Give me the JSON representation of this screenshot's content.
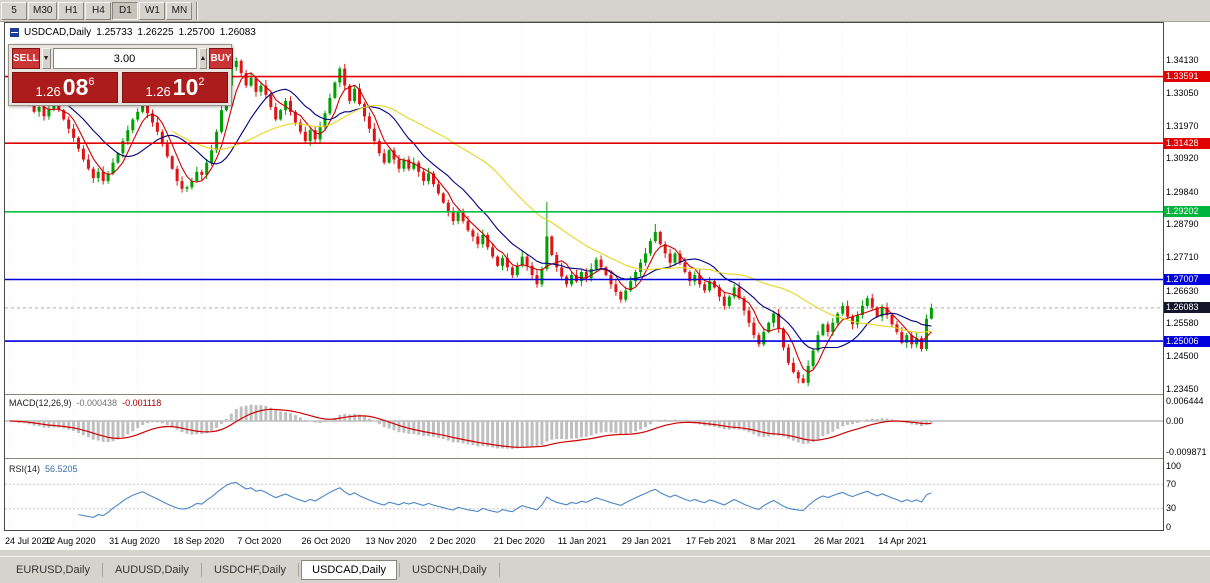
{
  "toolbar": {
    "timeframes": [
      "5",
      "M30",
      "H1",
      "H4",
      "D1",
      "W1",
      "MN"
    ],
    "active_timeframe": "D1"
  },
  "chart_title": {
    "symbol": "USDCAD,Daily",
    "open": "1.25733",
    "high": "1.26225",
    "low": "1.25700",
    "close": "1.26083"
  },
  "trade_panel": {
    "sell_label": "SELL",
    "buy_label": "BUY",
    "volume": "3.00",
    "spin_down_icon": "▼",
    "spin_up_icon": "▲",
    "sell_price": {
      "base": "1.26",
      "pips": "08",
      "pt": "6"
    },
    "buy_price": {
      "base": "1.26",
      "pips": "10",
      "pt": "2"
    }
  },
  "price_axis": [
    {
      "label": "1.34130",
      "price": 1.3413,
      "bg": ""
    },
    {
      "label": "1.33591",
      "price": 1.33591,
      "bg": "#e00000"
    },
    {
      "label": "1.33050",
      "price": 1.3305,
      "bg": ""
    },
    {
      "label": "1.31970",
      "price": 1.3197,
      "bg": ""
    },
    {
      "label": "1.31428",
      "price": 1.31428,
      "bg": "#e00000"
    },
    {
      "label": "1.30920",
      "price": 1.3092,
      "bg": ""
    },
    {
      "label": "1.29840",
      "price": 1.2984,
      "bg": ""
    },
    {
      "label": "1.29202",
      "price": 1.29202,
      "bg": "#00b43c"
    },
    {
      "label": "1.28790",
      "price": 1.2879,
      "bg": ""
    },
    {
      "label": "1.27710",
      "price": 1.2771,
      "bg": ""
    },
    {
      "label": "1.27007",
      "price": 1.27007,
      "bg": "#0000dc"
    },
    {
      "label": "1.26630",
      "price": 1.2663,
      "bg": ""
    },
    {
      "label": "1.26083",
      "price": 1.26083,
      "bg": "#14142d"
    },
    {
      "label": "1.25580",
      "price": 1.2558,
      "bg": ""
    },
    {
      "label": "1.25006",
      "price": 1.25006,
      "bg": "#0000dc"
    },
    {
      "label": "1.24500",
      "price": 1.245,
      "bg": ""
    },
    {
      "label": "1.23450",
      "price": 1.2345,
      "bg": ""
    }
  ],
  "chart_data": {
    "type": "candlestick",
    "symbol": "USDCAD",
    "period": "Daily",
    "first_open": 1.337,
    "closes": [
      1.334,
      1.331,
      1.3285,
      1.33,
      1.327,
      1.3245,
      1.326,
      1.323,
      1.3255,
      1.3275,
      1.325,
      1.322,
      1.319,
      1.316,
      1.3125,
      1.309,
      1.306,
      1.303,
      1.305,
      1.302,
      1.3045,
      1.308,
      1.311,
      1.315,
      1.3185,
      1.322,
      1.3245,
      1.327,
      1.324,
      1.321,
      1.318,
      1.314,
      1.31,
      1.306,
      1.302,
      1.2995,
      1.3,
      1.302,
      1.305,
      1.304,
      1.308,
      1.312,
      1.318,
      1.325,
      1.333,
      1.339,
      1.341,
      1.337,
      1.333,
      1.3355,
      1.331,
      1.333,
      1.33,
      1.326,
      1.322,
      1.325,
      1.328,
      1.3245,
      1.321,
      1.318,
      1.315,
      1.3185,
      1.3155,
      1.3195,
      1.324,
      1.329,
      1.334,
      1.3385,
      1.333,
      1.328,
      1.332,
      1.327,
      1.323,
      1.319,
      1.315,
      1.311,
      1.308,
      1.312,
      1.309,
      1.306,
      1.309,
      1.306,
      1.308,
      1.305,
      1.302,
      1.3045,
      1.301,
      1.298,
      1.295,
      1.292,
      1.289,
      1.292,
      1.289,
      1.286,
      1.284,
      1.2815,
      1.2845,
      1.2805,
      1.2775,
      1.2745,
      1.277,
      1.274,
      1.2715,
      1.2745,
      1.2775,
      1.2745,
      1.2715,
      1.2685,
      1.2735,
      1.284,
      1.278,
      1.274,
      1.271,
      1.2685,
      1.2715,
      1.2695,
      1.2725,
      1.2705,
      1.2735,
      1.2765,
      1.274,
      1.2715,
      1.2685,
      1.266,
      1.2635,
      1.2665,
      1.2695,
      1.2725,
      1.2755,
      1.2785,
      1.2825,
      1.2855,
      1.2815,
      1.2785,
      1.2755,
      1.2785,
      1.2755,
      1.2725,
      1.2695,
      1.2715,
      1.2685,
      1.2665,
      1.2695,
      1.2675,
      1.2645,
      1.2615,
      1.2645,
      1.2675,
      1.264,
      1.26,
      1.256,
      1.252,
      1.249,
      1.253,
      1.256,
      1.259,
      1.254,
      1.248,
      1.243,
      1.24,
      1.238,
      1.2365,
      1.242,
      1.247,
      1.252,
      1.2555,
      1.253,
      1.256,
      1.259,
      1.2615,
      1.258,
      1.2555,
      1.2585,
      1.2615,
      1.264,
      1.261,
      1.258,
      1.261,
      1.2585,
      1.2555,
      1.253,
      1.2495,
      1.252,
      1.249,
      1.251,
      1.2475,
      1.2573,
      1.26083
    ],
    "last_candle": {
      "open": 1.25733,
      "high": 1.26225,
      "low": 1.257,
      "close": 1.26083
    },
    "wick_overrides": {
      "46": {
        "high": 1.3421
      },
      "67": {
        "high": 1.3392
      },
      "109": {
        "high": 1.2952
      },
      "131": {
        "high": 1.2881
      },
      "161": {
        "low": 1.2363
      }
    },
    "candle_up_color": "#00a000",
    "candle_down_color": "#e01414",
    "horizontal_lines": [
      {
        "price": 1.33591,
        "color": "#e00000"
      },
      {
        "price": 1.31428,
        "color": "#e00000"
      },
      {
        "price": 1.29202,
        "color": "#00c040"
      },
      {
        "price": 1.27007,
        "color": "#0000dc"
      },
      {
        "price": 1.25006,
        "color": "#0000dc"
      }
    ],
    "current_price": 1.26083,
    "moving_averages": [
      {
        "period": 5,
        "color": "#cc0000"
      },
      {
        "period": 13,
        "color": "#000080"
      },
      {
        "period": 34,
        "color": "#e8d520"
      }
    ],
    "x_ticks": [
      "24 Jul 2020",
      "12 Aug 2020",
      "31 Aug 2020",
      "18 Sep 2020",
      "7 Oct 2020",
      "26 Oct 2020",
      "13 Nov 2020",
      "2 Dec 2020",
      "21 Dec 2020",
      "11 Jan 2021",
      "29 Jan 2021",
      "17 Feb 2021",
      "8 Mar 2021",
      "26 Mar 2021",
      "14 Apr 2021"
    ],
    "candles_per_tick": 13,
    "indicators": {
      "macd": {
        "label": "MACD(12,26,9)",
        "value_main": "-0.000438",
        "value_signal": "-0.001118",
        "axis": [
          "0.006444",
          "0.00",
          "-0.009871"
        ],
        "histogram_color": "#bfbfbf",
        "signal_color": "#d00000"
      },
      "rsi": {
        "label": "RSI(14)",
        "value": "56.5205",
        "axis": [
          "100",
          "70",
          "30",
          "0"
        ],
        "levels": [
          70,
          30
        ],
        "line_color": "#4a86c8"
      }
    }
  },
  "tabs": [
    "EURUSD,Daily",
    "AUDUSD,Daily",
    "USDCHF,Daily",
    "USDCAD,Daily",
    "USDCNH,Daily"
  ],
  "active_tab": "USDCAD,Daily"
}
